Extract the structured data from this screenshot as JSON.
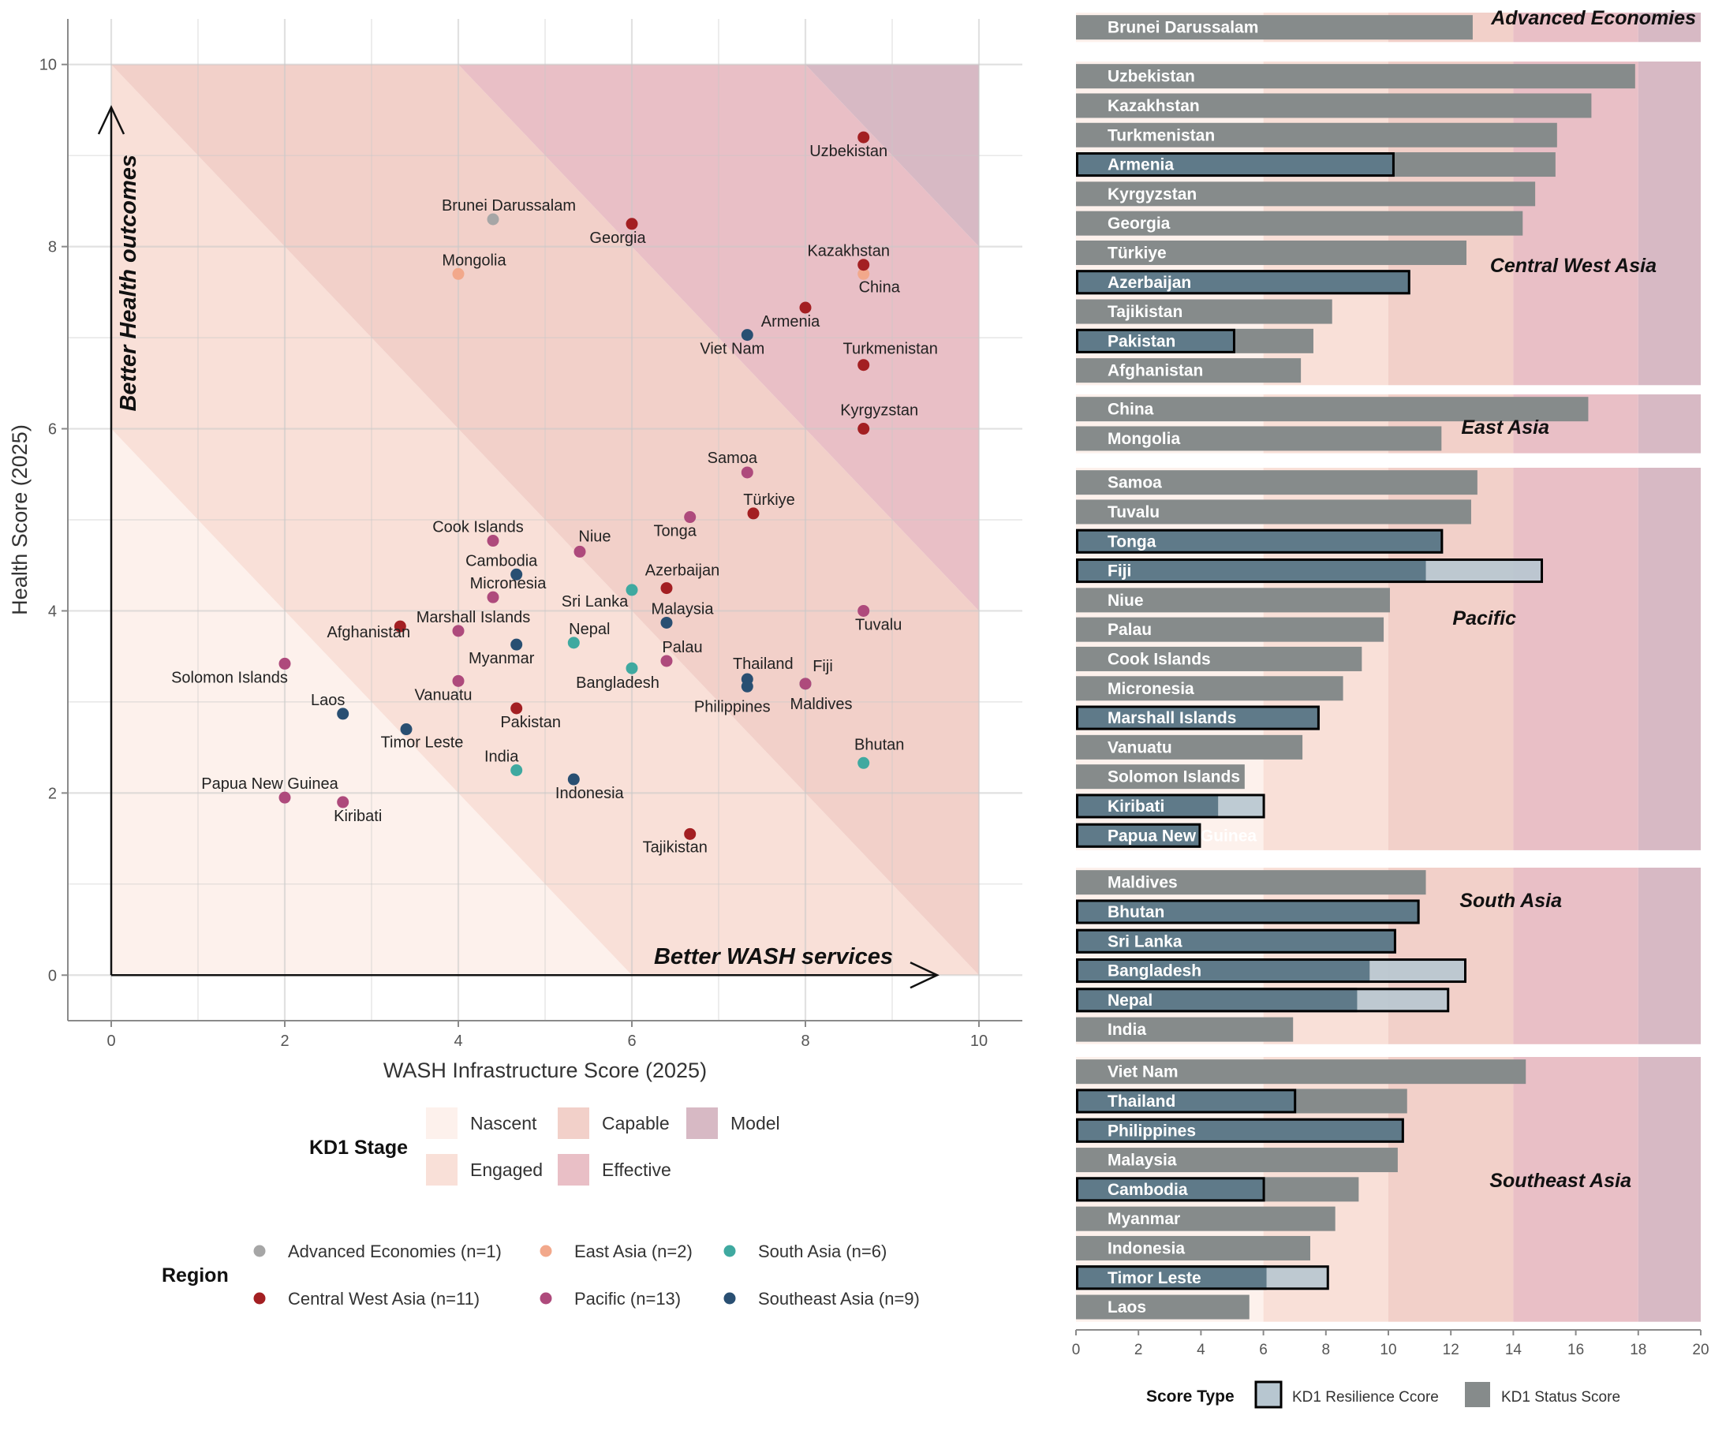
{
  "colors": {
    "stage_nascent": "#fdf1ec",
    "stage_engaged": "#f9e0d8",
    "stage_capable": "#f2d0c9",
    "stage_effective": "#e9bfc6",
    "stage_model": "#d7b9c4",
    "region_advanced": "#a6a6a6",
    "region_east_asia": "#f2a88b",
    "region_south_asia": "#3fa9a0",
    "region_central_west_asia": "#a31f22",
    "region_pacific": "#ae4a7c",
    "region_southeast_asia": "#294f72",
    "bar_status": "#868b8b",
    "bar_resilience": "#b7c6d0",
    "bar_overlap": "#5f7a89",
    "grid": "#e6e6e6",
    "axis_text": "#555555"
  },
  "chart_data": [
    {
      "type": "scatter",
      "xlabel": "WASH Infrastructure Score (2025)",
      "ylabel": "Health Score (2025)",
      "xlim": [
        -0.5,
        10.5
      ],
      "ylim": [
        -0.5,
        10.5
      ],
      "xticks": [
        0,
        2,
        4,
        6,
        8,
        10
      ],
      "yticks": [
        0,
        2,
        4,
        6,
        8,
        10
      ],
      "arrow_x_label": "Better WASH services",
      "arrow_y_label": "Better Health outcomes",
      "grid": true,
      "points": [
        {
          "label": "Brunei Darussalam",
          "region": "advanced",
          "x": 4.4,
          "y": 8.3
        },
        {
          "label": "Mongolia",
          "region": "east_asia",
          "x": 4.0,
          "y": 7.7
        },
        {
          "label": "China",
          "region": "east_asia",
          "x": 8.67,
          "y": 7.7
        },
        {
          "label": "Uzbekistan",
          "region": "central_west_asia",
          "x": 8.67,
          "y": 9.2
        },
        {
          "label": "Georgia",
          "region": "central_west_asia",
          "x": 6.0,
          "y": 8.25
        },
        {
          "label": "Kazakhstan",
          "region": "central_west_asia",
          "x": 8.67,
          "y": 7.8
        },
        {
          "label": "Armenia",
          "region": "central_west_asia",
          "x": 8.0,
          "y": 7.33
        },
        {
          "label": "Turkmenistan",
          "region": "central_west_asia",
          "x": 8.67,
          "y": 6.7
        },
        {
          "label": "Kyrgyzstan",
          "region": "central_west_asia",
          "x": 8.67,
          "y": 6.0
        },
        {
          "label": "Türkiye",
          "region": "central_west_asia",
          "x": 7.4,
          "y": 5.07
        },
        {
          "label": "Azerbaijan",
          "region": "central_west_asia",
          "x": 6.4,
          "y": 4.25
        },
        {
          "label": "Afghanistan",
          "region": "central_west_asia",
          "x": 3.33,
          "y": 3.83
        },
        {
          "label": "Pakistan",
          "region": "central_west_asia",
          "x": 4.67,
          "y": 2.93
        },
        {
          "label": "Tajikistan",
          "region": "central_west_asia",
          "x": 6.67,
          "y": 1.55
        },
        {
          "label": "Viet Nam",
          "region": "southeast_asia",
          "x": 7.33,
          "y": 7.03
        },
        {
          "label": "Cambodia",
          "region": "southeast_asia",
          "x": 4.67,
          "y": 4.4
        },
        {
          "label": "Malaysia",
          "region": "southeast_asia",
          "x": 6.4,
          "y": 3.87
        },
        {
          "label": "Myanmar",
          "region": "southeast_asia",
          "x": 4.67,
          "y": 3.63
        },
        {
          "label": "Thailand",
          "region": "southeast_asia",
          "x": 7.33,
          "y": 3.25
        },
        {
          "label": "Philippines",
          "region": "southeast_asia",
          "x": 7.33,
          "y": 3.17
        },
        {
          "label": "Laos",
          "region": "southeast_asia",
          "x": 2.67,
          "y": 2.87
        },
        {
          "label": "Timor Leste",
          "region": "southeast_asia",
          "x": 3.4,
          "y": 2.7
        },
        {
          "label": "Indonesia",
          "region": "southeast_asia",
          "x": 5.33,
          "y": 2.15
        },
        {
          "label": "Sri Lanka",
          "region": "south_asia",
          "x": 6.0,
          "y": 4.23
        },
        {
          "label": "Nepal",
          "region": "south_asia",
          "x": 5.33,
          "y": 3.65
        },
        {
          "label": "Bangladesh",
          "region": "south_asia",
          "x": 6.0,
          "y": 3.37
        },
        {
          "label": "Maldives",
          "region": "south_asia",
          "x": 8.0,
          "y": 3.2
        },
        {
          "label": "Bhutan",
          "region": "south_asia",
          "x": 8.67,
          "y": 2.33
        },
        {
          "label": "India",
          "region": "south_asia",
          "x": 4.67,
          "y": 2.25
        },
        {
          "label": "Samoa",
          "region": "pacific",
          "x": 7.33,
          "y": 5.52
        },
        {
          "label": "Tonga",
          "region": "pacific",
          "x": 6.67,
          "y": 5.03
        },
        {
          "label": "Cook Islands",
          "region": "pacific",
          "x": 4.4,
          "y": 4.77
        },
        {
          "label": "Niue",
          "region": "pacific",
          "x": 5.4,
          "y": 4.65
        },
        {
          "label": "Micronesia",
          "region": "pacific",
          "x": 4.4,
          "y": 4.15
        },
        {
          "label": "Tuvalu",
          "region": "pacific",
          "x": 8.67,
          "y": 4.0
        },
        {
          "label": "Marshall Islands",
          "region": "pacific",
          "x": 4.0,
          "y": 3.78
        },
        {
          "label": "Palau",
          "region": "pacific",
          "x": 6.4,
          "y": 3.45
        },
        {
          "label": "Fiji",
          "region": "pacific",
          "x": 8.0,
          "y": 3.2
        },
        {
          "label": "Vanuatu",
          "region": "pacific",
          "x": 4.0,
          "y": 3.23
        },
        {
          "label": "Solomon Islands",
          "region": "pacific",
          "x": 2.0,
          "y": 3.42
        },
        {
          "label": "Papua New Guinea",
          "region": "pacific",
          "x": 2.0,
          "y": 1.95
        },
        {
          "label": "Kiribati",
          "region": "pacific",
          "x": 2.67,
          "y": 1.9
        }
      ]
    },
    {
      "type": "bar",
      "orientation": "horizontal",
      "xlim": [
        0,
        20
      ],
      "xticks": [
        "0",
        "2",
        "4",
        "6",
        "8",
        "10",
        "12",
        "14",
        "16",
        "18",
        "20"
      ],
      "stage_breaks": [
        0,
        6,
        10,
        14,
        18,
        20
      ],
      "series": [
        {
          "name": "KD1 Resilience Ccore",
          "key": "resilience"
        },
        {
          "name": "KD1 Status Score",
          "key": "status"
        }
      ],
      "groups": [
        {
          "name": "Advanced Economies",
          "bars": [
            {
              "country": "Brunei Darussalam",
              "status": 12.7
            }
          ]
        },
        {
          "name": "Central West Asia",
          "bars": [
            {
              "country": "Uzbekistan",
              "status": 17.9
            },
            {
              "country": "Kazakhstan",
              "status": 16.5
            },
            {
              "country": "Turkmenistan",
              "status": 15.4
            },
            {
              "country": "Armenia",
              "status": 15.35,
              "resilience": 10.2
            },
            {
              "country": "Kyrgyzstan",
              "status": 14.7
            },
            {
              "country": "Georgia",
              "status": 14.3
            },
            {
              "country": "Türkiye",
              "status": 12.5
            },
            {
              "country": "Azerbaijan",
              "status": 10.7,
              "resilience": 10.7
            },
            {
              "country": "Tajikistan",
              "status": 8.2
            },
            {
              "country": "Pakistan",
              "status": 7.6,
              "resilience": 5.1
            },
            {
              "country": "Afghanistan",
              "status": 7.2
            }
          ]
        },
        {
          "name": "East Asia",
          "bars": [
            {
              "country": "China",
              "status": 16.4
            },
            {
              "country": "Mongolia",
              "status": 11.7
            }
          ]
        },
        {
          "name": "Pacific",
          "bars": [
            {
              "country": "Samoa",
              "status": 12.85
            },
            {
              "country": "Tuvalu",
              "status": 12.65
            },
            {
              "country": "Tonga",
              "status": 11.75,
              "resilience": 11.75
            },
            {
              "country": "Fiji",
              "status": 11.2,
              "resilience": 14.95
            },
            {
              "country": "Niue",
              "status": 10.05
            },
            {
              "country": "Palau",
              "status": 9.85
            },
            {
              "country": "Cook Islands",
              "status": 9.15
            },
            {
              "country": "Micronesia",
              "status": 8.55
            },
            {
              "country": "Marshall Islands",
              "status": 7.8,
              "resilience": 7.8
            },
            {
              "country": "Vanuatu",
              "status": 7.25
            },
            {
              "country": "Solomon Islands",
              "status": 5.4
            },
            {
              "country": "Kiribati",
              "status": 4.55,
              "resilience": 6.05
            },
            {
              "country": "Papua New Guinea",
              "status": 4.0,
              "resilience": 4.0
            }
          ]
        },
        {
          "name": "South Asia",
          "bars": [
            {
              "country": "Maldives",
              "status": 11.2
            },
            {
              "country": "Bhutan",
              "status": 11.0,
              "resilience": 11.0
            },
            {
              "country": "Sri Lanka",
              "status": 10.25,
              "resilience": 10.25
            },
            {
              "country": "Bangladesh",
              "status": 9.4,
              "resilience": 12.5
            },
            {
              "country": "Nepal",
              "status": 9.0,
              "resilience": 11.95
            },
            {
              "country": "India",
              "status": 6.95
            }
          ]
        },
        {
          "name": "Southeast Asia",
          "bars": [
            {
              "country": "Viet Nam",
              "status": 14.4
            },
            {
              "country": "Thailand",
              "status": 10.6,
              "resilience": 7.05
            },
            {
              "country": "Philippines",
              "status": 10.5,
              "resilience": 10.5
            },
            {
              "country": "Malaysia",
              "status": 10.3
            },
            {
              "country": "Cambodia",
              "status": 9.05,
              "resilience": 6.05
            },
            {
              "country": "Myanmar",
              "status": 8.3
            },
            {
              "country": "Indonesia",
              "status": 7.5
            },
            {
              "country": "Timor Leste",
              "status": 6.1,
              "resilience": 8.1
            },
            {
              "country": "Laos",
              "status": 5.55
            }
          ]
        }
      ]
    }
  ],
  "legend_stage": {
    "title": "KD1 Stage",
    "items": [
      {
        "label": "Nascent",
        "key": "stage_nascent"
      },
      {
        "label": "Engaged",
        "key": "stage_engaged"
      },
      {
        "label": "Capable",
        "key": "stage_capable"
      },
      {
        "label": "Effective",
        "key": "stage_effective"
      },
      {
        "label": "Model",
        "key": "stage_model"
      }
    ]
  },
  "legend_region": {
    "title": "Region",
    "items": [
      {
        "label": "Advanced Economies (n=1)",
        "key": "region_advanced"
      },
      {
        "label": "Central West Asia (n=11)",
        "key": "region_central_west_asia"
      },
      {
        "label": "East Asia (n=2)",
        "key": "region_east_asia"
      },
      {
        "label": "Pacific (n=13)",
        "key": "region_pacific"
      },
      {
        "label": "South Asia (n=6)",
        "key": "region_south_asia"
      },
      {
        "label": "Southeast Asia (n=9)",
        "key": "region_southeast_asia"
      }
    ]
  },
  "legend_score": {
    "title": "Score Type",
    "items": [
      {
        "label": "KD1 Resilience Ccore",
        "key": "bar_resilience"
      },
      {
        "label": "KD1 Status Score",
        "key": "bar_status"
      }
    ]
  }
}
